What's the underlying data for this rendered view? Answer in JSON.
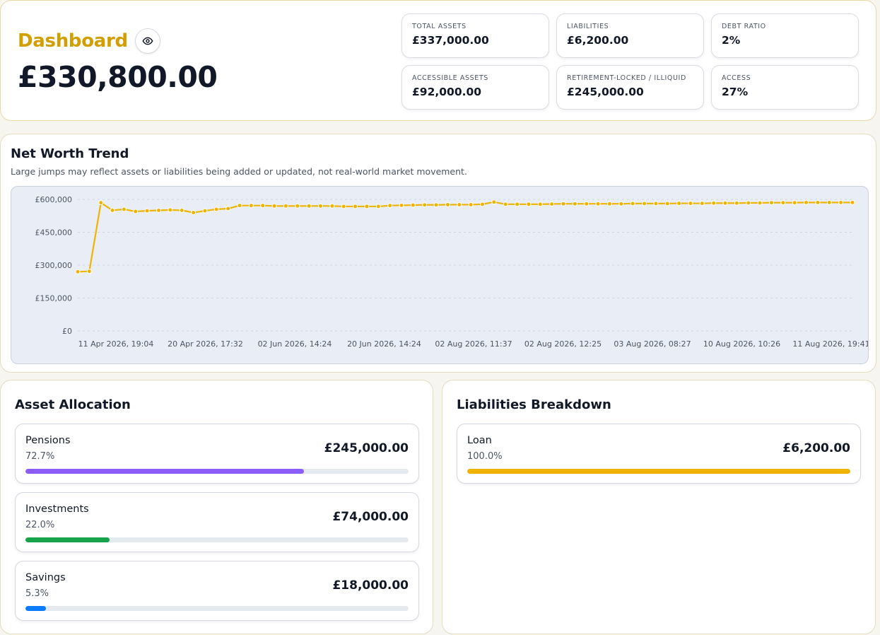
{
  "header": {
    "title": "Dashboard",
    "net_worth": "£330,800.00",
    "stats": [
      {
        "label": "TOTAL ASSETS",
        "value": "£337,000.00"
      },
      {
        "label": "LIABILITIES",
        "value": "£6,200.00"
      },
      {
        "label": "DEBT RATIO",
        "value": "2%"
      },
      {
        "label": "ACCESSIBLE ASSETS",
        "value": "£92,000.00"
      },
      {
        "label": "RETIREMENT-LOCKED / ILLIQUID",
        "value": "£245,000.00"
      },
      {
        "label": "ACCESS",
        "value": "27%"
      }
    ]
  },
  "trend": {
    "title": "Net Worth Trend",
    "subtitle": "Large jumps may reflect assets or liabilities being added or updated, not real-world market movement."
  },
  "chart_data": {
    "type": "line",
    "title": "",
    "xlabel": "",
    "ylabel": "",
    "ylim": [
      0,
      600000
    ],
    "y_ticks": [
      "£0",
      "£150,000",
      "£300,000",
      "£450,000",
      "£600,000"
    ],
    "x_tick_labels": [
      "11 Apr 2026, 19:04",
      "20 Apr 2026, 17:32",
      "02 Jun 2026, 14:24",
      "20 Jun 2026, 14:24",
      "02 Aug 2026, 11:37",
      "02 Aug 2026, 12:25",
      "03 Aug 2026, 08:27",
      "10 Aug 2026, 10:26",
      "11 Aug 2026, 19:41"
    ],
    "grid": true,
    "line_color": "#f0b400",
    "series": [
      {
        "values": [
          270000,
          272000,
          585000,
          550000,
          555000,
          545000,
          548000,
          550000,
          552000,
          550000,
          540000,
          548000,
          555000,
          558000,
          572000,
          572000,
          572000,
          570000,
          570000,
          570000,
          570000,
          570000,
          570000,
          568000,
          568000,
          568000,
          568000,
          572000,
          573000,
          574000,
          575000,
          575000,
          576000,
          576000,
          576000,
          578000,
          588000,
          578000,
          578000,
          578000,
          578000,
          579000,
          580000,
          580000,
          580000,
          580000,
          580000,
          580000,
          581000,
          581000,
          581000,
          581000,
          582000,
          582000,
          582000,
          583000,
          583000,
          583000,
          584000,
          584000,
          585000,
          585000,
          585000,
          586000,
          586000,
          586000,
          586000,
          586000
        ]
      }
    ]
  },
  "allocation": {
    "title": "Asset Allocation",
    "items": [
      {
        "name": "Pensions",
        "pct": "72.7%",
        "amount": "£245,000.00",
        "fraction": 0.727,
        "color": "#8b5cf6"
      },
      {
        "name": "Investments",
        "pct": "22.0%",
        "amount": "£74,000.00",
        "fraction": 0.22,
        "color": "#16a34a"
      },
      {
        "name": "Savings",
        "pct": "5.3%",
        "amount": "£18,000.00",
        "fraction": 0.053,
        "color": "#0b7cff"
      }
    ]
  },
  "liabilities": {
    "title": "Liabilities Breakdown",
    "items": [
      {
        "name": "Loan",
        "pct": "100.0%",
        "amount": "£6,200.00",
        "fraction": 1.0,
        "color": "#f0b400"
      }
    ]
  },
  "icons": {
    "visibility_toggle": "eye-icon"
  }
}
